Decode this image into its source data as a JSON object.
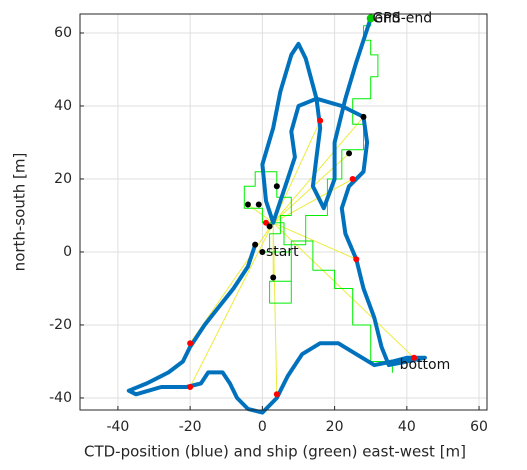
{
  "chart_data": {
    "type": "line",
    "xlabel": "CTD-position (blue) and ship (green) east-west [m]",
    "ylabel": "north-south [m]",
    "xlim": [
      -50.5,
      62.2
    ],
    "ylim": [
      -43.3,
      65.2
    ],
    "xticks": [
      -40,
      -20,
      0,
      20,
      40,
      60
    ],
    "yticks": [
      -40,
      -20,
      0,
      20,
      40,
      60
    ],
    "grid": true,
    "series": [
      {
        "mode": "line",
        "color": "#ecec3f",
        "width": 1,
        "x": [
          3,
          -20,
          null,
          3,
          -20,
          null,
          3,
          4,
          null,
          3,
          42,
          null,
          3,
          26,
          null,
          3,
          25,
          null,
          3,
          16,
          null,
          3,
          24,
          null,
          3,
          28,
          null,
          3,
          3,
          null,
          3,
          -4
        ],
        "y": [
          8,
          -37,
          null,
          8,
          -25,
          null,
          8,
          -39,
          null,
          8,
          -29,
          null,
          8,
          -2,
          null,
          8,
          20,
          null,
          8,
          36,
          null,
          8,
          27,
          null,
          8,
          37,
          null,
          8,
          -7,
          null,
          8,
          13
        ]
      },
      {
        "mode": "line",
        "color": "#00ee00",
        "width": 1,
        "x": [
          36,
          36,
          30,
          30,
          25,
          25,
          20,
          20,
          14,
          14,
          8,
          8,
          2,
          2,
          8,
          8,
          0,
          2,
          2,
          5,
          5,
          8,
          8,
          4,
          4,
          -2,
          -2,
          -5,
          -5,
          0,
          0,
          6,
          6,
          12,
          12,
          18,
          18,
          22,
          22,
          28,
          28,
          25,
          25,
          30,
          30,
          32,
          32,
          30,
          30,
          28,
          28,
          30,
          30
        ],
        "y": [
          -33,
          -30,
          -30,
          -20,
          -20,
          -10,
          -10,
          -5,
          -5,
          3,
          3,
          -8,
          -8,
          -14,
          -14,
          0,
          0,
          0,
          5,
          5,
          10,
          10,
          15,
          15,
          22,
          22,
          18,
          18,
          12,
          12,
          8,
          8,
          2,
          2,
          10,
          10,
          20,
          20,
          28,
          28,
          35,
          35,
          42,
          42,
          48,
          48,
          54,
          54,
          58,
          58,
          62,
          62,
          64
        ]
      },
      {
        "mode": "line",
        "color": "#0072bd",
        "width": 4,
        "x": [
          -2,
          -4,
          -8,
          -12,
          -16,
          -20,
          -22,
          -26,
          -32,
          -37,
          -35,
          -28,
          -21,
          -17,
          -15,
          -11,
          -9,
          -7,
          -4,
          0,
          4,
          7,
          11,
          16,
          21,
          26,
          31,
          36,
          40,
          45,
          40,
          35,
          33,
          31,
          28,
          26,
          23,
          22,
          24,
          28,
          29,
          28,
          22,
          15,
          10,
          8,
          9,
          7,
          5,
          3,
          1,
          0,
          3,
          5,
          8,
          10,
          12,
          15,
          16,
          15,
          14,
          17,
          20,
          20,
          23,
          26,
          28,
          30
        ],
        "y": [
          2,
          -4,
          -10,
          -15,
          -20,
          -26,
          -30,
          -33,
          -36,
          -38,
          -39,
          -37,
          -37,
          -36,
          -33,
          -33,
          -36,
          -40,
          -43,
          -44,
          -40,
          -34,
          -28,
          -25,
          -25,
          -28,
          -31,
          -30,
          -29,
          -29,
          -30,
          -31,
          -26,
          -18,
          -10,
          -2,
          5,
          12,
          18,
          22,
          30,
          37,
          40,
          42,
          40,
          33,
          26,
          20,
          14,
          8,
          14,
          24,
          34,
          44,
          54,
          57,
          53,
          42,
          34,
          26,
          18,
          12,
          20,
          30,
          42,
          52,
          58,
          64
        ]
      },
      {
        "mode": "markers",
        "color": "#ff0000",
        "width": 3,
        "x": [
          -20,
          -20,
          4,
          42,
          26,
          25,
          16,
          1
        ],
        "y": [
          -37,
          -25,
          -39,
          -29,
          -2,
          20,
          36,
          8
        ]
      },
      {
        "mode": "markers",
        "color": "#000000",
        "width": 3,
        "x": [
          -4,
          -1,
          4,
          2,
          -2,
          0,
          3,
          24,
          28
        ],
        "y": [
          13,
          13,
          18,
          7,
          2,
          0,
          -7,
          27,
          37
        ]
      },
      {
        "mode": "markers",
        "color": "#00cc00",
        "width": 4,
        "x": [
          30
        ],
        "y": [
          64
        ]
      }
    ],
    "annotations": [
      {
        "text": "start",
        "x": 1,
        "y": 0
      },
      {
        "text": "bottom",
        "x": 38,
        "y": -31
      },
      {
        "text": "GPS-end",
        "x": 30.5,
        "y": 64
      },
      {
        "text": "end",
        "x": 31,
        "y": 64
      }
    ]
  }
}
